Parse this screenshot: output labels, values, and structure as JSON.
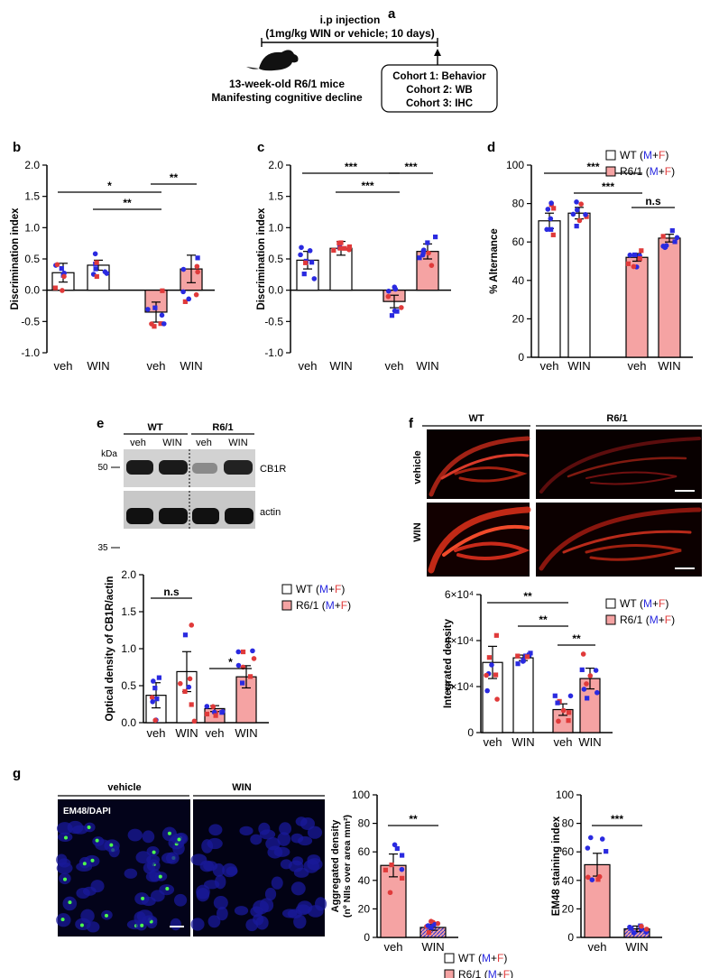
{
  "colors": {
    "wt": "#ffffff",
    "r6": "#f5a3a3",
    "male": "#2a2ae0",
    "female": "#e03a3a",
    "bar_stroke": "#000000",
    "hatch": "#3a3ad0"
  },
  "panels": {
    "a": "a",
    "b": "b",
    "c": "c",
    "d": "d",
    "e": "e",
    "f": "f",
    "g": "g"
  },
  "schematic": {
    "line1": "i.p injection",
    "line2": "(1mg/kg WIN or vehicle; 10 days)",
    "mice1": "13-week-old R6/1 mice",
    "mice2": "Manifesting cognitive decline",
    "cohorts": [
      "Cohort 1: Behavior",
      "Cohort 2: WB",
      "Cohort 3: IHC"
    ]
  },
  "legend": {
    "wt": "WT",
    "r6": "R6/1",
    "open": "(",
    "m": "M",
    "plus": "+",
    "f": "F",
    "close": ")"
  },
  "chart_data": [
    {
      "id": "b",
      "type": "bar",
      "ylabel": "Discrimination index",
      "ylim": [
        -1,
        2
      ],
      "yticks": [
        "2.0",
        "1.5",
        "1.0",
        "0.5",
        "0.0",
        "-0.5",
        "-1.0"
      ],
      "categories": [
        "veh",
        "WIN",
        "veh",
        "WIN"
      ],
      "values": [
        0.28,
        0.4,
        -0.35,
        0.34
      ],
      "sem": [
        0.15,
        0.08,
        0.16,
        0.22
      ],
      "significance": [
        "*",
        "**",
        "**"
      ]
    },
    {
      "id": "c",
      "type": "bar",
      "ylabel": "Discrimination index",
      "ylim": [
        -1,
        2
      ],
      "yticks": [
        "2.0",
        "1.5",
        "1.0",
        "0.5",
        "0.0",
        "-0.5",
        "-1.0"
      ],
      "categories": [
        "veh",
        "WIN",
        "veh",
        "WIN"
      ],
      "values": [
        0.48,
        0.67,
        -0.18,
        0.62
      ],
      "sem": [
        0.14,
        0.11,
        0.1,
        0.12
      ],
      "significance": [
        "***",
        "***",
        "***"
      ]
    },
    {
      "id": "d",
      "type": "bar",
      "ylabel": "% Alternance",
      "ylim": [
        0,
        100
      ],
      "yticks": [
        "100",
        "80",
        "60",
        "40",
        "20",
        "0"
      ],
      "categories": [
        "veh",
        "WIN",
        "veh",
        "WIN"
      ],
      "values": [
        71,
        75,
        52,
        62
      ],
      "sem": [
        4,
        3,
        2,
        2
      ],
      "significance": [
        "***",
        "***",
        "n.s"
      ]
    },
    {
      "id": "e",
      "type": "bar",
      "ylabel": "Optical density of CB1R/actin",
      "ylim": [
        0,
        2
      ],
      "yticks": [
        "2.0",
        "1.5",
        "1.0",
        "0.5",
        "0.0"
      ],
      "categories": [
        "veh",
        "WIN",
        "veh",
        "WIN"
      ],
      "values": [
        0.37,
        0.69,
        0.19,
        0.62
      ],
      "sem": [
        0.17,
        0.27,
        0.04,
        0.15
      ],
      "significance": [
        "n.s",
        "*"
      ]
    },
    {
      "id": "f",
      "type": "bar",
      "ylabel": "Integrated density",
      "ylim": [
        0,
        60000
      ],
      "yticks": [
        "6×10⁴",
        "4×10⁴",
        "2×10⁴",
        "0"
      ],
      "categories": [
        "veh",
        "WIN",
        "veh",
        "WIN"
      ],
      "values": [
        30500,
        32500,
        10000,
        23500
      ],
      "sem": [
        7000,
        1200,
        2500,
        4500
      ],
      "significance": [
        "**",
        "**",
        "**"
      ]
    },
    {
      "id": "g1",
      "type": "bar",
      "ylabel1": "Aggregated density",
      "ylabel2": "(nº NIIs over area mm²)",
      "ylim": [
        0,
        100
      ],
      "yticks": [
        "100",
        "80",
        "60",
        "40",
        "20",
        "0"
      ],
      "categories": [
        "veh",
        "WIN"
      ],
      "values": [
        50.5,
        7
      ],
      "sem": [
        8,
        2
      ],
      "significance": [
        "**"
      ]
    },
    {
      "id": "g2",
      "type": "bar",
      "ylabel": "EM48 staining index",
      "ylim": [
        0,
        100
      ],
      "yticks": [
        "100",
        "80",
        "60",
        "40",
        "20",
        "0"
      ],
      "categories": [
        "veh",
        "WIN"
      ],
      "values": [
        51,
        6
      ],
      "sem": [
        8,
        2
      ],
      "significance": [
        "***"
      ]
    }
  ],
  "western": {
    "wt": "WT",
    "r6": "R6/1",
    "lanes": [
      "veh",
      "WIN",
      "veh",
      "WIN"
    ],
    "kda": "kDa",
    "m50": "50",
    "m35": "35",
    "cb1r": "CB1R",
    "actin": "actin"
  },
  "micro_f": {
    "wt": "WT",
    "r6": "R6/1",
    "row1": "vehicle",
    "row2": "WIN"
  },
  "micro_g": {
    "vehicle": "vehicle",
    "win": "WIN",
    "stain": "EM48/DAPI"
  }
}
